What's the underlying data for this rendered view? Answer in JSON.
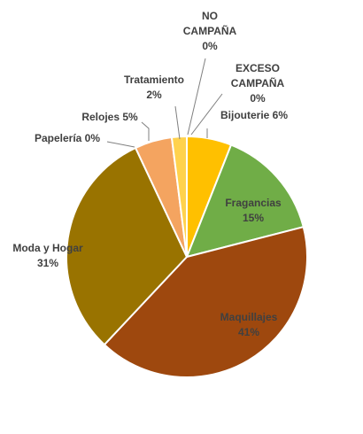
{
  "chart_data": {
    "type": "pie",
    "title": "",
    "slices": [
      {
        "label": "Bijouterie",
        "value": 6,
        "display": "6%",
        "color": "#ffc000"
      },
      {
        "label": "Fragancias",
        "value": 15,
        "display": "15%",
        "color": "#70ad47"
      },
      {
        "label": "Maquillajes",
        "value": 41,
        "display": "41%",
        "color": "#9e480e"
      },
      {
        "label": "Moda y Hogar",
        "value": 31,
        "display": "31%",
        "color": "#997300"
      },
      {
        "label": "Papelería",
        "value": 0,
        "display": "0%",
        "color": "#5b9bd5"
      },
      {
        "label": "Relojes",
        "value": 5,
        "display": "5%",
        "color": "#f4a460"
      },
      {
        "label": "Tratamiento",
        "value": 2,
        "display": "2%",
        "color": "#ffd24d"
      },
      {
        "label": "NO CAMPAÑA",
        "value": 0,
        "display": "0%",
        "color": "#a5a5a5"
      },
      {
        "label": "EXCESO CAMPAÑA",
        "value": 0,
        "display": "0%",
        "color": "#4472c4"
      }
    ]
  }
}
